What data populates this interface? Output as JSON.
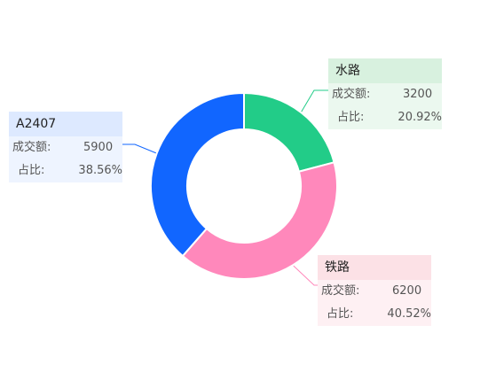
{
  "chart_data": {
    "type": "pie",
    "title": "",
    "categories": [
      "水路",
      "铁路",
      "A2407"
    ],
    "values": [
      3200,
      6200,
      5900
    ],
    "percentages": [
      "20.92%",
      "40.52%",
      "38.56%"
    ],
    "colors": [
      "#22CC88",
      "#FF88BB",
      "#1166FF"
    ],
    "donut": true
  },
  "tooltip_labels": {
    "amount": "成交额:",
    "share": "占比:"
  },
  "cards": [
    {
      "name": "水路",
      "amount": "3200",
      "share": "20.92%",
      "header_bg": "#D8F1DF",
      "body_bg": "#EBF8EF"
    },
    {
      "name": "铁路",
      "amount": "6200",
      "share": "40.52%",
      "header_bg": "#FCE1E6",
      "body_bg": "#FEF0F3"
    },
    {
      "name": "A2407",
      "amount": "5900",
      "share": "38.56%",
      "header_bg": "#DDE9FF",
      "body_bg": "#EEF4FF"
    }
  ]
}
